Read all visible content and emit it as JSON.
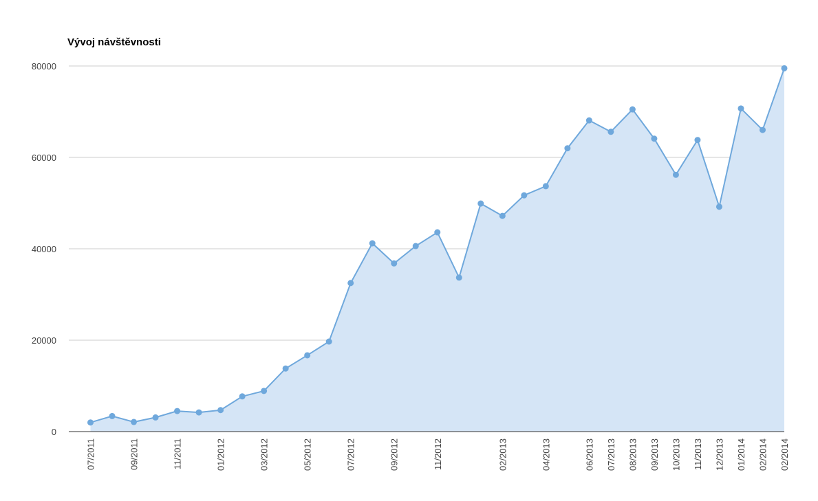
{
  "chart_data": {
    "type": "area",
    "title": "Vývoj návštěvnosti",
    "categories": [
      "07/2011",
      null,
      "09/2011",
      null,
      "11/2011",
      null,
      "01/2012",
      null,
      "03/2012",
      null,
      "05/2012",
      null,
      "07/2012",
      null,
      "09/2012",
      null,
      "11/2012",
      null,
      null,
      "02/2013",
      null,
      "04/2013",
      null,
      "06/2013",
      "07/2013",
      "08/2013",
      "09/2013",
      "10/2013",
      "11/2013",
      "12/2013",
      "01/2014",
      "02/2014",
      "02/2014"
    ],
    "values": [
      2000,
      3400,
      2100,
      3100,
      4500,
      4200,
      4700,
      7700,
      8900,
      13800,
      16700,
      19700,
      32500,
      41200,
      36800,
      40600,
      43600,
      33700,
      49900,
      47200,
      51700,
      53700,
      62000,
      68100,
      65600,
      70500,
      64100,
      56200,
      63800,
      49200,
      70700,
      66000,
      79500
    ],
    "color": "#6fa8dc",
    "fill": "#d5e5f6",
    "ylim": [
      0,
      80000
    ],
    "yticks": [
      0,
      20000,
      40000,
      60000,
      80000
    ],
    "grid": true
  }
}
